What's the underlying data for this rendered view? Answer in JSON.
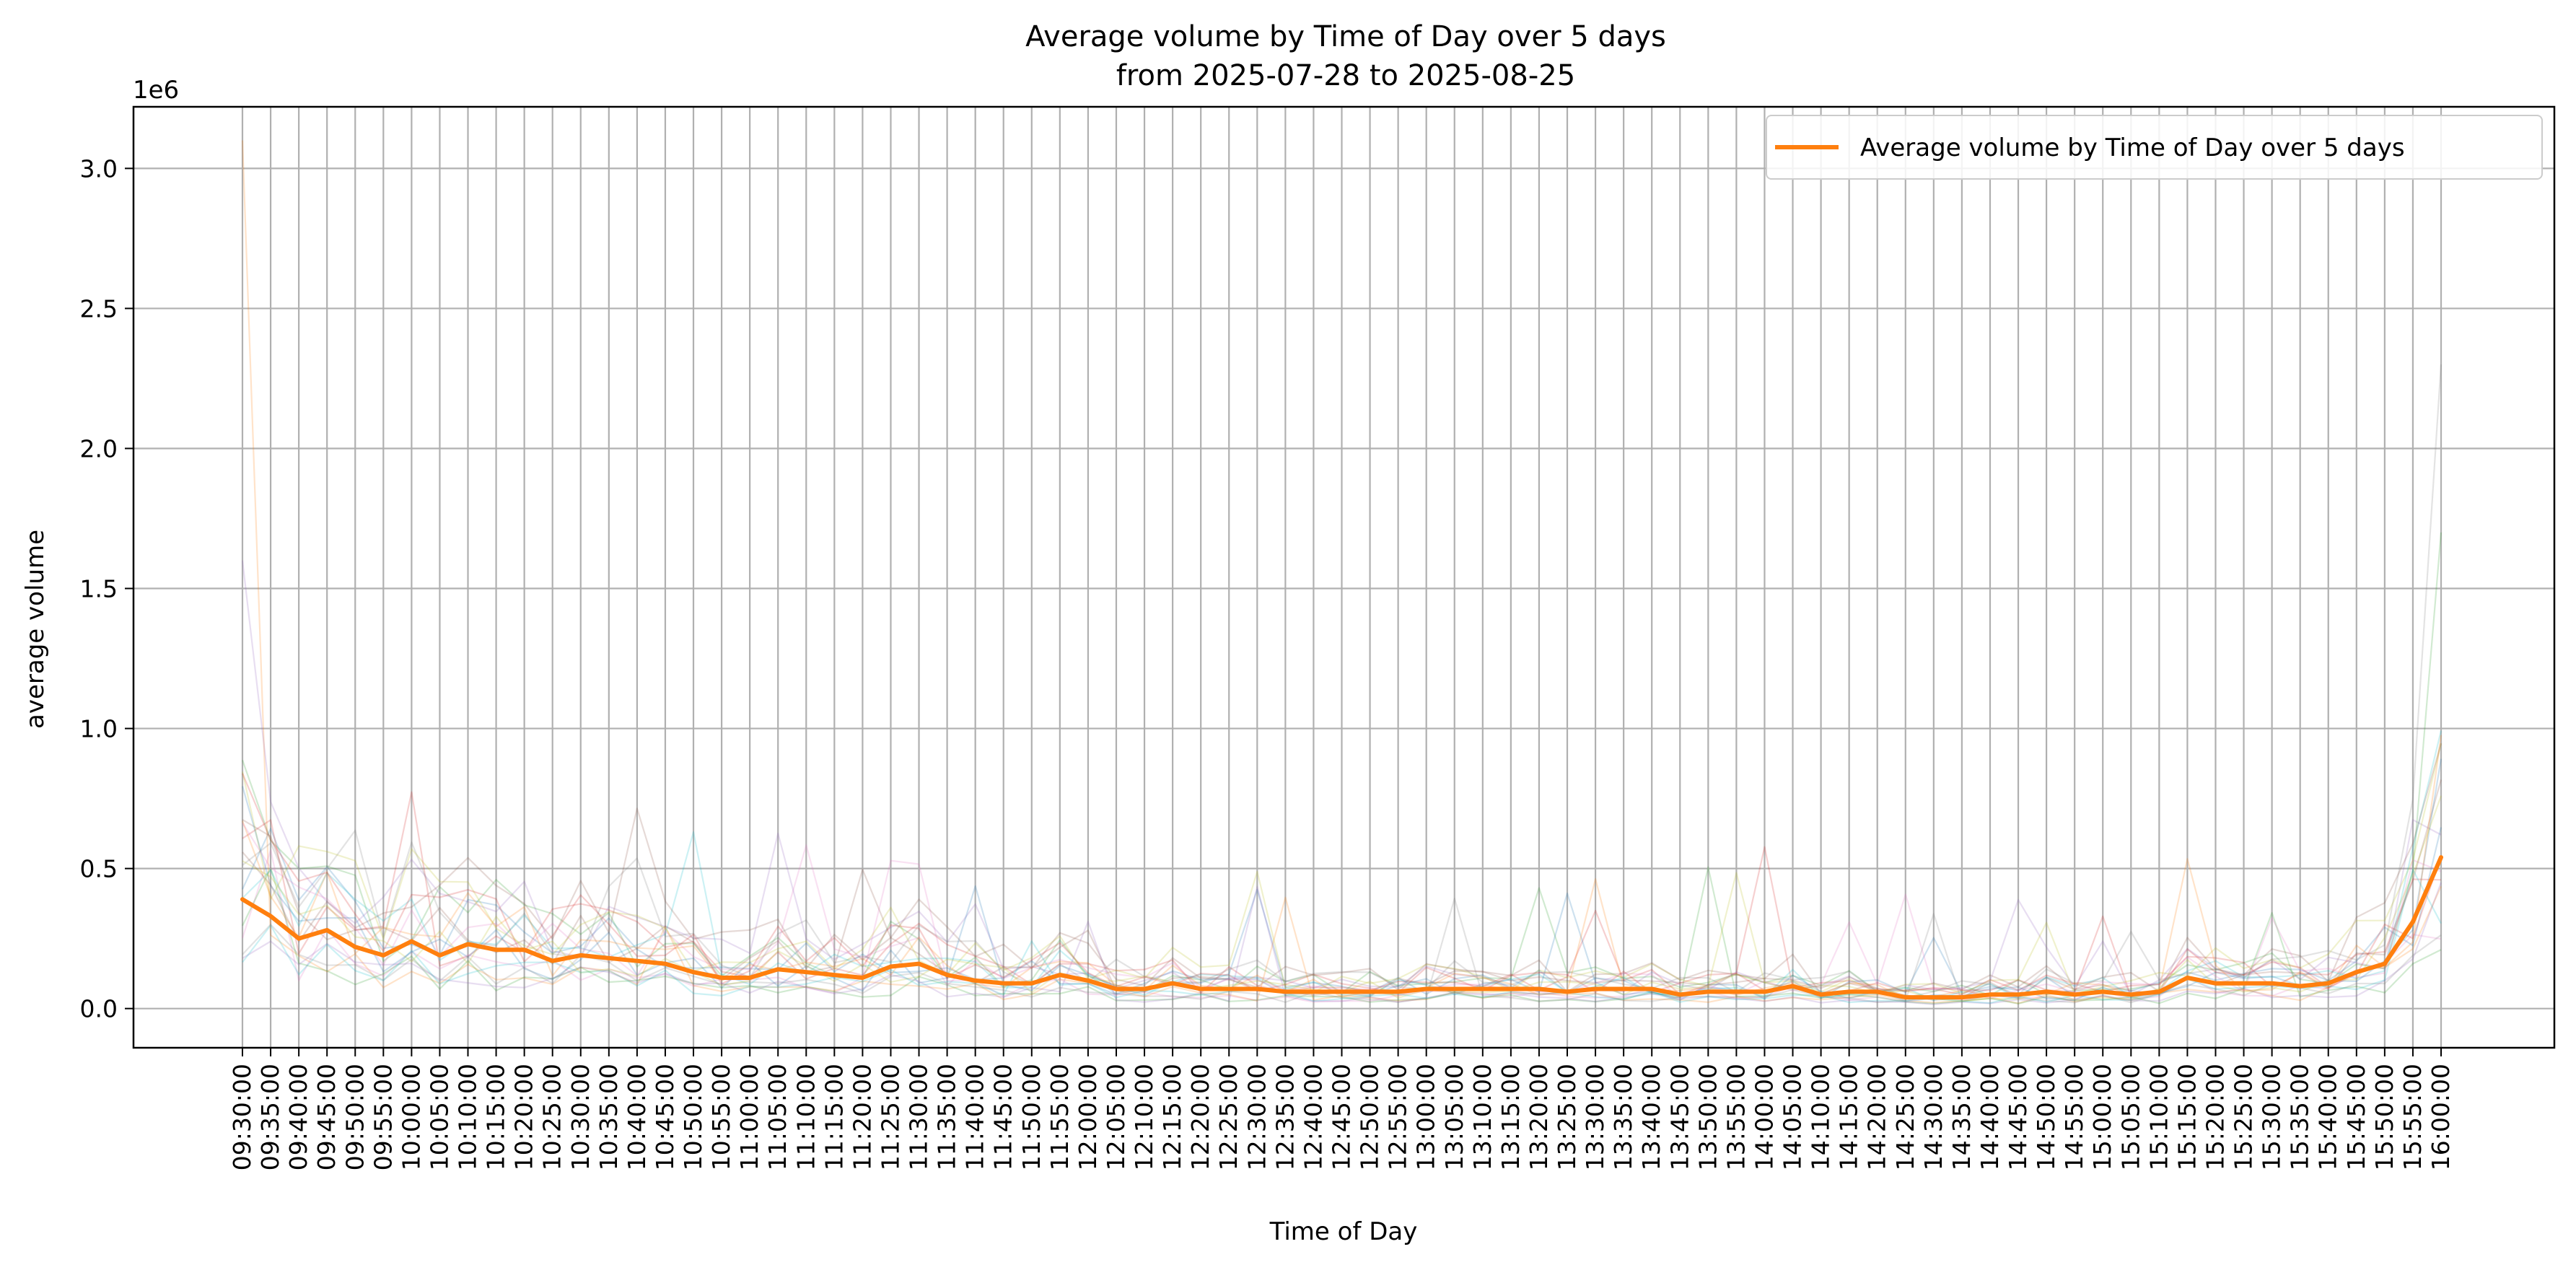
{
  "chart_data": {
    "type": "line",
    "title": "Average volume by Time of Day over 5 days",
    "subtitle": "from 2025-07-28 to 2025-08-25",
    "xlabel": "Time of Day",
    "ylabel": "average volume",
    "y_offset_label": "1e6",
    "ylim": [
      -0.14,
      3.22
    ],
    "yticks": [
      0.0,
      0.5,
      1.0,
      1.5,
      2.0,
      2.5,
      3.0
    ],
    "ytick_labels": [
      "0.0",
      "0.5",
      "1.0",
      "1.5",
      "2.0",
      "2.5",
      "3.0"
    ],
    "grid": true,
    "legend_position": "top-right",
    "categories": [
      "09:30:00",
      "09:35:00",
      "09:40:00",
      "09:45:00",
      "09:50:00",
      "09:55:00",
      "10:00:00",
      "10:05:00",
      "10:10:00",
      "10:15:00",
      "10:20:00",
      "10:25:00",
      "10:30:00",
      "10:35:00",
      "10:40:00",
      "10:45:00",
      "10:50:00",
      "10:55:00",
      "11:00:00",
      "11:05:00",
      "11:10:00",
      "11:15:00",
      "11:20:00",
      "11:25:00",
      "11:30:00",
      "11:35:00",
      "11:40:00",
      "11:45:00",
      "11:50:00",
      "11:55:00",
      "12:00:00",
      "12:05:00",
      "12:10:00",
      "12:15:00",
      "12:20:00",
      "12:25:00",
      "12:30:00",
      "12:35:00",
      "12:40:00",
      "12:45:00",
      "12:50:00",
      "12:55:00",
      "13:00:00",
      "13:05:00",
      "13:10:00",
      "13:15:00",
      "13:20:00",
      "13:25:00",
      "13:30:00",
      "13:35:00",
      "13:40:00",
      "13:45:00",
      "13:50:00",
      "13:55:00",
      "14:00:00",
      "14:05:00",
      "14:10:00",
      "14:15:00",
      "14:20:00",
      "14:25:00",
      "14:30:00",
      "14:35:00",
      "14:40:00",
      "14:45:00",
      "14:50:00",
      "14:55:00",
      "15:00:00",
      "15:05:00",
      "15:10:00",
      "15:15:00",
      "15:20:00",
      "15:25:00",
      "15:30:00",
      "15:35:00",
      "15:40:00",
      "15:45:00",
      "15:50:00",
      "15:55:00",
      "16:00:00"
    ],
    "main_series": {
      "name": "Average volume by Time of Day over 5 days",
      "color": "#ff7f0e",
      "values": [
        0.39,
        0.33,
        0.25,
        0.28,
        0.22,
        0.19,
        0.24,
        0.19,
        0.23,
        0.21,
        0.21,
        0.17,
        0.19,
        0.18,
        0.17,
        0.16,
        0.13,
        0.11,
        0.11,
        0.14,
        0.13,
        0.12,
        0.11,
        0.15,
        0.16,
        0.12,
        0.1,
        0.09,
        0.09,
        0.12,
        0.1,
        0.07,
        0.07,
        0.09,
        0.07,
        0.07,
        0.07,
        0.06,
        0.06,
        0.06,
        0.06,
        0.06,
        0.07,
        0.07,
        0.07,
        0.07,
        0.07,
        0.06,
        0.07,
        0.07,
        0.07,
        0.05,
        0.06,
        0.06,
        0.06,
        0.08,
        0.05,
        0.06,
        0.06,
        0.04,
        0.04,
        0.04,
        0.05,
        0.05,
        0.06,
        0.05,
        0.06,
        0.05,
        0.06,
        0.11,
        0.09,
        0.09,
        0.09,
        0.08,
        0.09,
        0.13,
        0.16,
        0.31,
        0.54
      ]
    },
    "background_series_colors": [
      "#1f77b4",
      "#ff7f0e",
      "#2ca02c",
      "#d62728",
      "#9467bd",
      "#8c564b",
      "#e377c2",
      "#7f7f7f",
      "#bcbd22",
      "#17becf"
    ]
  }
}
